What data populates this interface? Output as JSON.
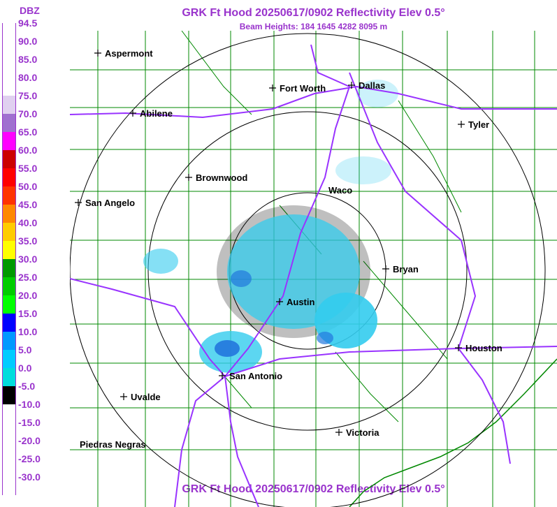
{
  "title": "GRK Ft Hood 20250617/0902 Reflectivity Elev 0.5°",
  "subtitle": "Beam Heights: 184 1645 4282 8095 m",
  "legend": {
    "unit": "DBZ",
    "labels": [
      "94.5",
      "90.0",
      "85.0",
      "80.0",
      "75.0",
      "70.0",
      "65.0",
      "60.0",
      "55.0",
      "50.0",
      "45.0",
      "40.0",
      "35.0",
      "30.0",
      "25.0",
      "20.0",
      "15.0",
      "10.0",
      "5.0",
      "0.0",
      "-5.0",
      "-10.0",
      "-15.0",
      "-20.0",
      "-25.0",
      "-30.0"
    ],
    "colors": [
      "#ffffff",
      "#ffffff",
      "#ffffff",
      "#ffffff",
      "#e0d0f0",
      "#a070d0",
      "#ff00ff",
      "#cc0000",
      "#ff0000",
      "#ff3300",
      "#ff8800",
      "#ffcc00",
      "#ffff00",
      "#009900",
      "#00cc00",
      "#00ff00",
      "#0000ff",
      "#0099ff",
      "#00ccff",
      "#00dddd",
      "#000000",
      "#ffffff",
      "#ffffff",
      "#ffffff",
      "#ffffff",
      "#ffffff"
    ]
  },
  "cities": [
    {
      "name": "Aspermont"
    },
    {
      "name": "Fort Worth"
    },
    {
      "name": "Dallas"
    },
    {
      "name": "Abilene"
    },
    {
      "name": "Tyler"
    },
    {
      "name": "Brownwood"
    },
    {
      "name": "Waco"
    },
    {
      "name": "San Angelo"
    },
    {
      "name": "Bryan"
    },
    {
      "name": "Austin"
    },
    {
      "name": "Houston"
    },
    {
      "name": "San Antonio"
    },
    {
      "name": "Uvalde"
    },
    {
      "name": "Victoria"
    },
    {
      "name": "Piedras Negras"
    }
  ],
  "colors": {
    "title": "#9933cc",
    "highway": "#9933ff",
    "county": "#008800",
    "echo_light": "#33ccee",
    "echo_mid": "#2277dd"
  }
}
